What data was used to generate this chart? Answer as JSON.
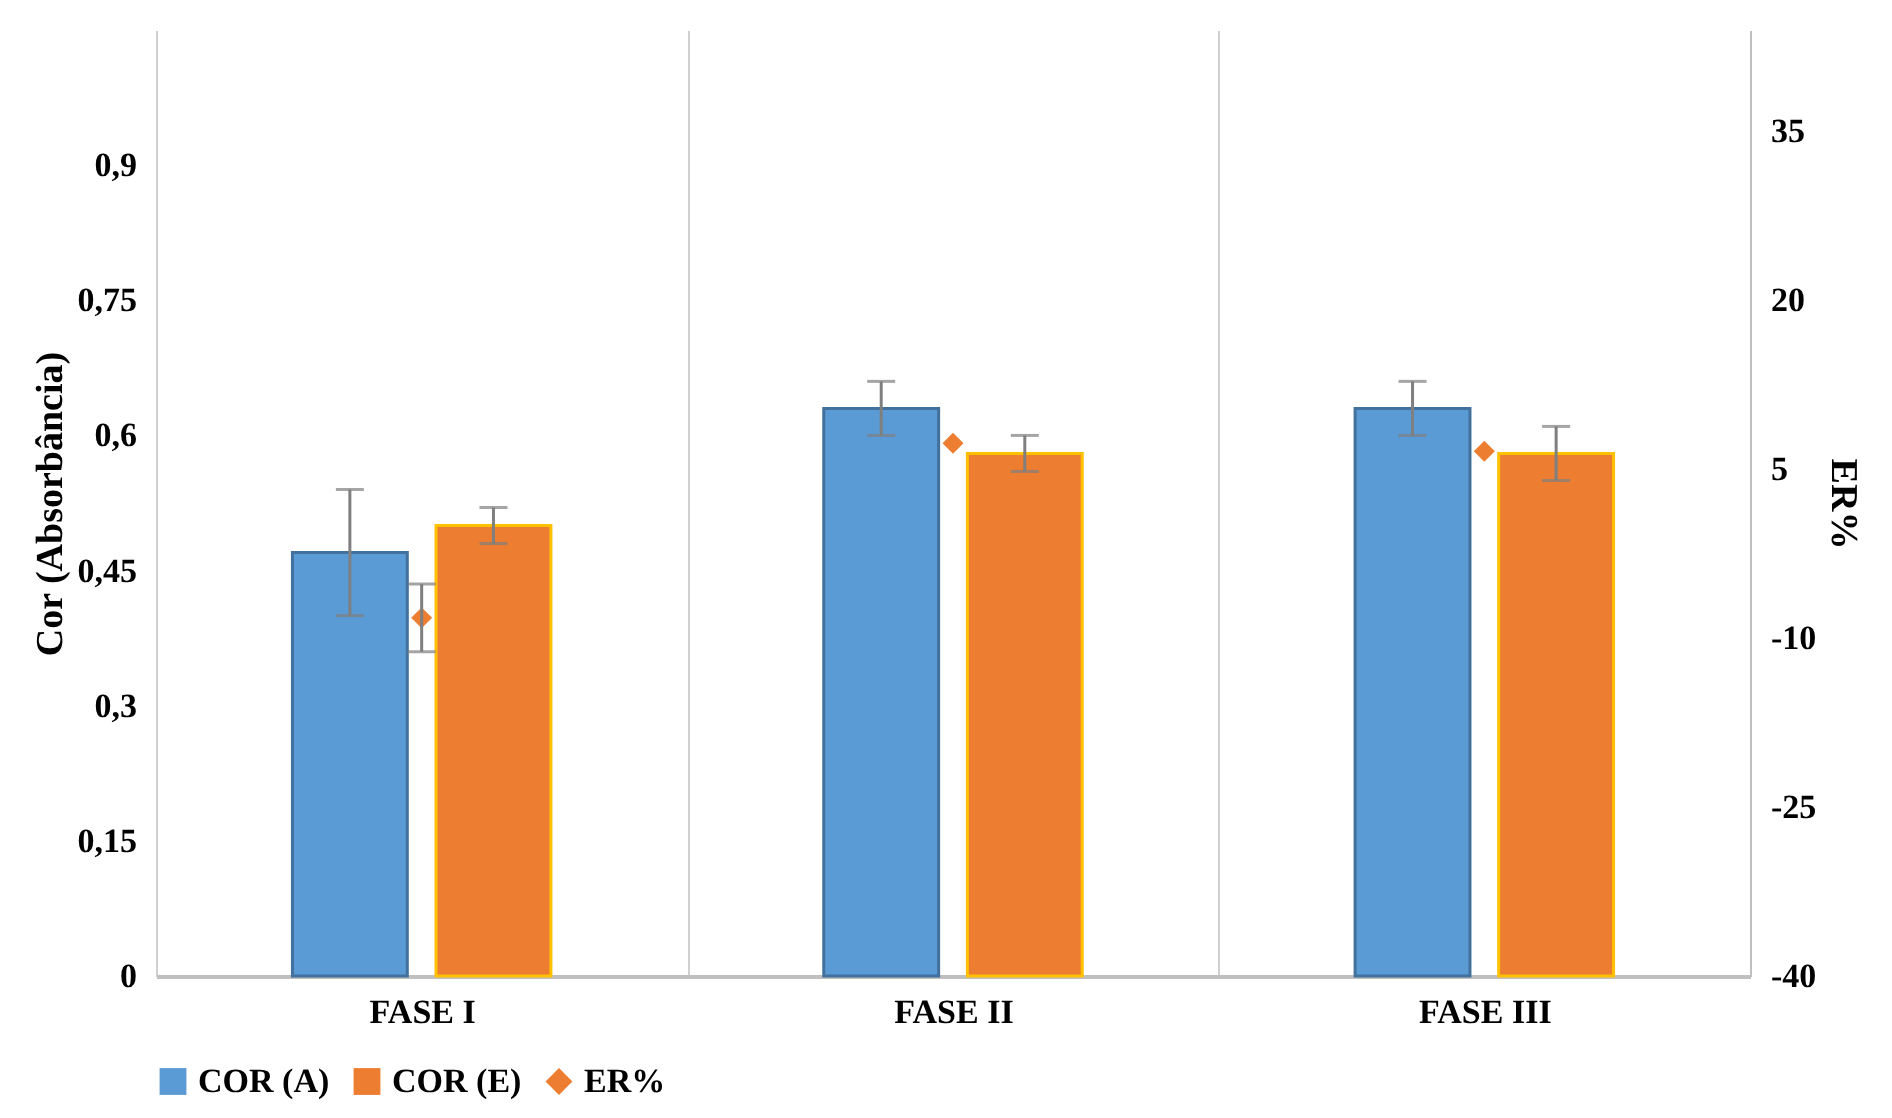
{
  "chart_data": {
    "type": "bar",
    "categories": [
      "FASE I",
      "FASE II",
      "FASE III"
    ],
    "series": [
      {
        "name": "COR (A)",
        "color": "#5b9bd5",
        "values": [
          0.47,
          0.63,
          0.63
        ],
        "errors": [
          0.07,
          0.03,
          0.03
        ]
      },
      {
        "name": "COR (E)",
        "color": "#ed7d31",
        "values": [
          0.5,
          0.58,
          0.58
        ],
        "errors": [
          0.02,
          0.02,
          0.03
        ]
      },
      {
        "name": "ER%",
        "type": "scatter",
        "axis": "y2",
        "color": "#ed7d31",
        "marker": "diamond",
        "values": [
          -8.2,
          7.3,
          6.6
        ],
        "errors": [
          3,
          null,
          null
        ]
      }
    ],
    "ylabel": "Cor (Absorbância)",
    "y2label": "ER%",
    "ylim": [
      0,
      1.05
    ],
    "yticks": [
      {
        "value": 0,
        "label": "0"
      },
      {
        "value": 0.15,
        "label": "0,15"
      },
      {
        "value": 0.3,
        "label": "0,3"
      },
      {
        "value": 0.45,
        "label": "0,45"
      },
      {
        "value": 0.6,
        "label": "0,6"
      },
      {
        "value": 0.75,
        "label": "0,75"
      },
      {
        "value": 0.9,
        "label": "0,9"
      }
    ],
    "y2lim": [
      -40,
      44
    ],
    "y2ticks": [
      -40,
      -25,
      -10,
      5,
      20,
      35
    ],
    "grid": "x",
    "legend": "bottom"
  }
}
